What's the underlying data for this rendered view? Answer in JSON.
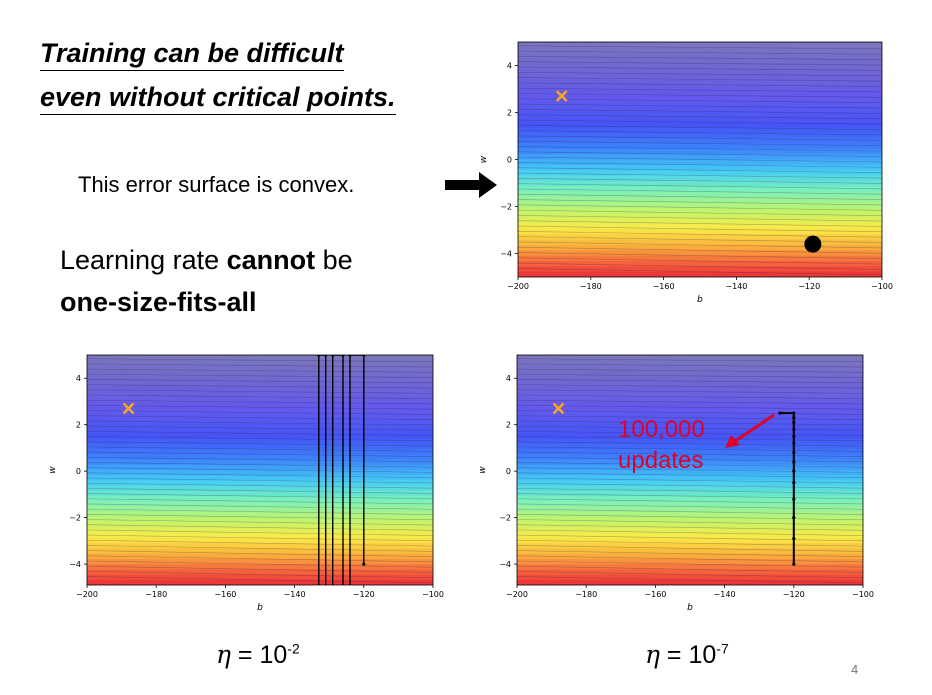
{
  "slide": {
    "title_line1": "Training can be difficult",
    "title_line2": "even without critical points.",
    "convex_text": "This error surface is convex.",
    "lr_prefix": "Learning rate ",
    "lr_bold": "cannot",
    "lr_suffix": " be",
    "lr_line2": "one-size-fits-all",
    "page_number": "4"
  },
  "captions": {
    "left": {
      "symbol": "η",
      "eq": " = 10",
      "exp": "-2"
    },
    "right": {
      "symbol": "η",
      "eq": " = 10",
      "exp": "-7"
    }
  },
  "annotation": {
    "line1": "100,000",
    "line2": "updates",
    "color": "#e0002a"
  },
  "colors": {
    "target_marker": "#f5a623",
    "path": "#000000"
  },
  "chart_data": [
    {
      "type": "contour",
      "xlabel": "b",
      "ylabel": "w",
      "xlim": [
        -200,
        -100
      ],
      "ylim": [
        -5,
        5
      ],
      "xticks": [
        -200,
        -180,
        -160,
        -140,
        -120,
        -100
      ],
      "yticks": [
        -4,
        -2,
        0,
        2,
        4
      ],
      "target": {
        "b": -188,
        "w": 2.7
      },
      "start_point": {
        "b": -119,
        "w": -3.6
      },
      "path": []
    },
    {
      "type": "contour",
      "xlabel": "b",
      "ylabel": "w",
      "xlim": [
        -200,
        -100
      ],
      "ylim": [
        -4.9,
        5
      ],
      "xticks": [
        -200,
        -180,
        -160,
        -140,
        -120,
        -100
      ],
      "yticks": [
        -4,
        -2,
        0,
        2,
        4
      ],
      "target": {
        "b": -188,
        "w": 2.7
      },
      "learning_rate": "10^-2",
      "path": [
        {
          "b": -120,
          "w": -4
        },
        {
          "b": -120,
          "w": 5
        },
        {
          "b": -124,
          "w": 5
        },
        {
          "b": -124,
          "w": -5
        },
        {
          "b": -126,
          "w": -5
        },
        {
          "b": -126,
          "w": 5
        },
        {
          "b": -129,
          "w": 5
        },
        {
          "b": -129,
          "w": -5
        },
        {
          "b": -131,
          "w": -5
        },
        {
          "b": -131,
          "w": 5
        },
        {
          "b": -133,
          "w": 5
        },
        {
          "b": -133,
          "w": -5
        }
      ]
    },
    {
      "type": "contour",
      "xlabel": "b",
      "ylabel": "w",
      "xlim": [
        -200,
        -100
      ],
      "ylim": [
        -4.9,
        5
      ],
      "xticks": [
        -200,
        -180,
        -160,
        -140,
        -120,
        -100
      ],
      "yticks": [
        -4,
        -2,
        0,
        2,
        4
      ],
      "target": {
        "b": -188,
        "w": 2.7
      },
      "learning_rate": "10^-7",
      "path": [
        {
          "b": -120,
          "w": -4
        },
        {
          "b": -120,
          "w": -2.9
        },
        {
          "b": -120,
          "w": -2
        },
        {
          "b": -120,
          "w": -1.2
        },
        {
          "b": -120,
          "w": -0.5
        },
        {
          "b": -120,
          "w": 0
        },
        {
          "b": -120,
          "w": 0.4
        },
        {
          "b": -120,
          "w": 0.8
        },
        {
          "b": -120,
          "w": 1.2
        },
        {
          "b": -120,
          "w": 1.5
        },
        {
          "b": -120,
          "w": 1.8
        },
        {
          "b": -120,
          "w": 2.1
        },
        {
          "b": -120,
          "w": 2.3
        },
        {
          "b": -120,
          "w": 2.5
        },
        {
          "b": -124,
          "w": 2.5
        }
      ]
    }
  ]
}
